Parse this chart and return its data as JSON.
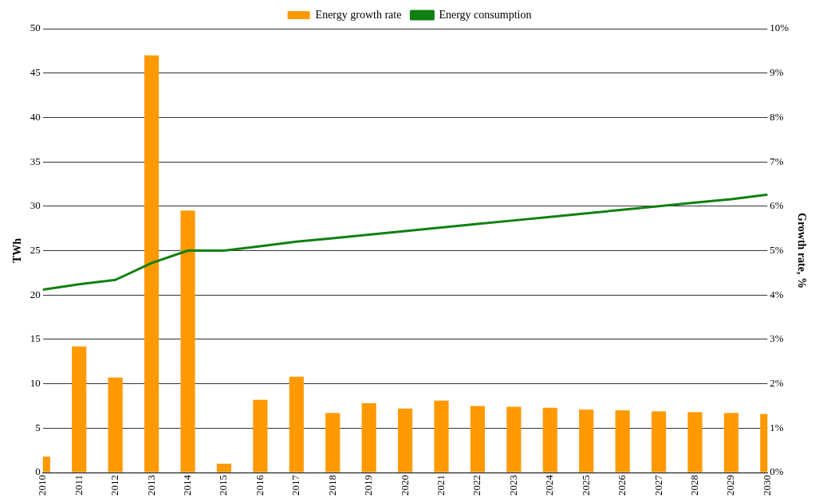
{
  "chart_data": {
    "type": "bar",
    "ylabel": "TWh",
    "y2label": "Growth rate, %",
    "categories": [
      "2010",
      "2011",
      "2012",
      "2013",
      "2014",
      "2015",
      "2016",
      "2017",
      "2018",
      "2019",
      "2020",
      "2021",
      "2022",
      "2023",
      "2024",
      "2025",
      "2026",
      "2027",
      "2028",
      "2029",
      "2030"
    ],
    "series": [
      {
        "name": "Energy growth rate",
        "axis": "y2",
        "color": "#ff9900",
        "values": [
          0.36,
          2.84,
          2.14,
          9.4,
          5.9,
          0.2,
          1.64,
          2.16,
          1.34,
          1.56,
          1.44,
          1.62,
          1.5,
          1.48,
          1.46,
          1.42,
          1.4,
          1.38,
          1.36,
          1.34,
          1.32
        ]
      },
      {
        "name": "Energy consumption",
        "type": "line",
        "color": "#108010",
        "values": [
          20.6,
          21.2,
          21.7,
          23.6,
          25.0,
          25.0,
          25.5,
          26.0,
          26.4,
          26.8,
          27.2,
          27.6,
          28.0,
          28.4,
          28.8,
          29.2,
          29.6,
          30.0,
          30.4,
          30.8,
          31.3
        ]
      }
    ],
    "ylim": [
      0,
      50
    ],
    "yticks": [
      0,
      5,
      10,
      15,
      20,
      25,
      30,
      35,
      40,
      45,
      50
    ],
    "y2lim": [
      0,
      10
    ],
    "y2ticks": [
      {
        "value": 0,
        "label": "0%"
      },
      {
        "value": 1,
        "label": "1%"
      },
      {
        "value": 2,
        "label": "2%"
      },
      {
        "value": 3,
        "label": "3%"
      },
      {
        "value": 4,
        "label": "4%"
      },
      {
        "value": 5,
        "label": "5%"
      },
      {
        "value": 6,
        "label": "6%"
      },
      {
        "value": 7,
        "label": "7%"
      },
      {
        "value": 8,
        "label": "8%"
      },
      {
        "value": 9,
        "label": "9%"
      },
      {
        "value": 10,
        "label": "10%"
      }
    ],
    "grid": "y",
    "legend": "top",
    "marker": "none",
    "line_style": "solid"
  }
}
